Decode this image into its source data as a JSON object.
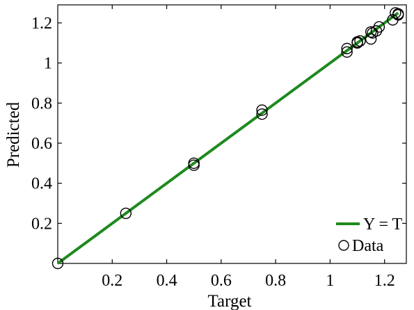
{
  "chart_data": {
    "type": "scatter",
    "xlabel": "Target",
    "ylabel": "Predicted",
    "xlim": [
      0,
      1.28
    ],
    "ylim": [
      0,
      1.29
    ],
    "x_ticks": [
      0.2,
      0.4,
      0.6,
      0.8,
      1,
      1.2
    ],
    "x_tick_labels": [
      "0.2",
      "0.4",
      "0.6",
      "0.8",
      "1",
      "1.2"
    ],
    "y_ticks": [
      0.2,
      0.4,
      0.6,
      0.8,
      1,
      1.2
    ],
    "y_tick_labels": [
      "0.2",
      "0.4",
      "0.6",
      "0.8",
      "1",
      "1.2"
    ],
    "grid": false,
    "legend_position": "bottom-right",
    "series": [
      {
        "name": "Y = T",
        "kind": "line",
        "color": "#1e8a1e",
        "x": [
          0,
          1.25
        ],
        "y": [
          0,
          1.25
        ]
      },
      {
        "name": "Data",
        "kind": "scatter",
        "marker": "open-circle",
        "color": "#000000",
        "x": [
          0,
          0.25,
          0.5,
          0.5,
          0.75,
          0.75,
          1.062,
          1.062,
          1.1,
          1.11,
          1.1,
          1.15,
          1.156,
          1.17,
          1.18,
          1.15,
          1.23,
          1.24,
          1.25,
          1.25
        ],
        "y": [
          0,
          0.25,
          0.49,
          0.5,
          0.745,
          0.765,
          1.055,
          1.072,
          1.1,
          1.11,
          1.105,
          1.12,
          1.15,
          1.16,
          1.18,
          1.155,
          1.215,
          1.25,
          1.24,
          1.245
        ]
      }
    ]
  }
}
